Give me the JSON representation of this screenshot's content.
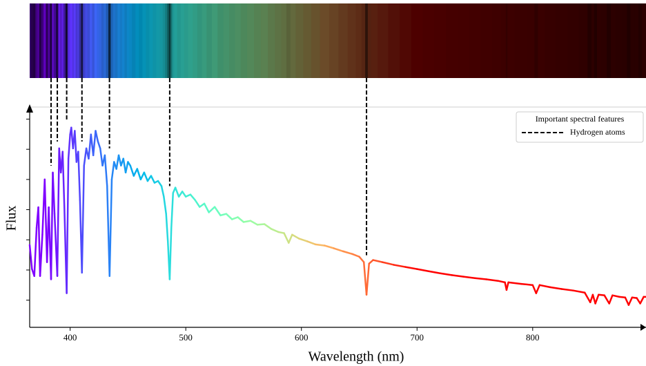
{
  "chart_data": {
    "type": "line",
    "x_label": "Wavelength (nm)",
    "y_label": "Flux",
    "colormap": "rainbow",
    "color_limits": [
      380,
      700
    ],
    "x": [
      365,
      367,
      369,
      371,
      372.5,
      374,
      376,
      378,
      380,
      381.5,
      383.5,
      385,
      386.5,
      388.9,
      390.5,
      392,
      393.5,
      395,
      397,
      398.5,
      400,
      401,
      402.5,
      404,
      405.5,
      407,
      408.5,
      410.2,
      412,
      414,
      416,
      418,
      420,
      422,
      424,
      426,
      428,
      430,
      432,
      434.1,
      436,
      438,
      440,
      442,
      444,
      446,
      448,
      450,
      452,
      455,
      458,
      461,
      464,
      467,
      470,
      473,
      476,
      479,
      481,
      483,
      484.5,
      486.1,
      487.5,
      489,
      491,
      494,
      497,
      500,
      504,
      508,
      512,
      516,
      520,
      525,
      530,
      535,
      540,
      545,
      550,
      556,
      562,
      568,
      574,
      580,
      585,
      589,
      592,
      598,
      605,
      612,
      620,
      628,
      636,
      644,
      650,
      654,
      656.3,
      658.5,
      662,
      670,
      680,
      690,
      700,
      710,
      720,
      730,
      740,
      750,
      760,
      770,
      776,
      777.4,
      779,
      790,
      800,
      803,
      806,
      815,
      825,
      835,
      845,
      849.8,
      852,
      854.2,
      857,
      862,
      866.2,
      869,
      875,
      880,
      883,
      886,
      890,
      893,
      896,
      898
    ],
    "values": [
      2.83,
      2.03,
      1.8,
      3.4,
      4.08,
      1.8,
      3.17,
      5.0,
      2.26,
      4.08,
      1.69,
      5.23,
      3.86,
      1.8,
      6.03,
      5.23,
      5.92,
      4.08,
      1.23,
      5.69,
      6.49,
      6.72,
      6.03,
      6.61,
      5.58,
      5.92,
      4.32,
      1.91,
      5.46,
      6.03,
      5.69,
      6.49,
      5.8,
      6.61,
      6.26,
      6.03,
      5.46,
      5.8,
      4.78,
      1.8,
      5.0,
      5.58,
      5.35,
      5.8,
      5.46,
      5.69,
      5.23,
      5.58,
      5.46,
      5.12,
      5.35,
      5.0,
      5.23,
      4.95,
      5.12,
      4.89,
      4.95,
      4.78,
      4.43,
      3.86,
      2.95,
      1.69,
      3.4,
      4.55,
      4.73,
      4.43,
      4.6,
      4.43,
      4.5,
      4.32,
      4.09,
      4.2,
      3.91,
      4.09,
      3.81,
      3.86,
      3.68,
      3.75,
      3.59,
      3.63,
      3.5,
      3.52,
      3.36,
      3.26,
      3.22,
      2.9,
      3.17,
      3.04,
      2.95,
      2.85,
      2.81,
      2.72,
      2.62,
      2.53,
      2.44,
      2.26,
      1.18,
      2.21,
      2.33,
      2.26,
      2.17,
      2.1,
      2.03,
      1.96,
      1.89,
      1.83,
      1.78,
      1.73,
      1.69,
      1.64,
      1.59,
      1.34,
      1.59,
      1.54,
      1.5,
      1.23,
      1.5,
      1.43,
      1.37,
      1.32,
      1.25,
      0.93,
      1.18,
      0.89,
      1.18,
      1.16,
      0.89,
      1.16,
      1.11,
      1.09,
      0.84,
      1.09,
      1.07,
      0.89,
      1.11,
      1.11
    ],
    "xlim": [
      365,
      898
    ],
    "xticks": [
      400,
      500,
      600,
      700,
      800
    ],
    "ylim": [
      0.1,
      7.4
    ],
    "yticks": [
      1,
      2,
      3,
      4,
      5,
      6,
      7
    ],
    "legend": {
      "title": "Important spectral features",
      "position": "upper right"
    },
    "features": {
      "label": "Hydrogen atoms",
      "x": [
        383.5,
        388.9,
        397.0,
        410.2,
        434.0,
        486.1,
        656.3
      ],
      "color": "#000000"
    }
  }
}
